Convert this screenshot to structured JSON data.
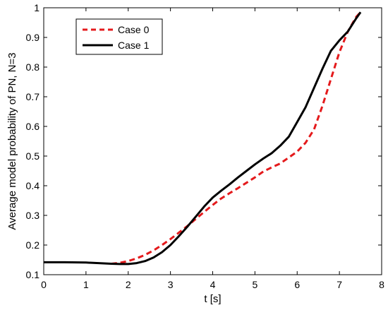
{
  "chart_data": {
    "type": "line",
    "xlabel": "t [s]",
    "ylabel": "Average model probability of PN, N=3",
    "xlim": [
      0,
      8
    ],
    "ylim": [
      0.1,
      1
    ],
    "xticks": [
      "0",
      "1",
      "2",
      "3",
      "4",
      "5",
      "6",
      "7",
      "8"
    ],
    "yticks": [
      "0.1",
      "0.2",
      "0.3",
      "0.4",
      "0.5",
      "0.6",
      "0.7",
      "0.8",
      "0.9",
      "1"
    ],
    "legend_position": "top-left",
    "grid": false,
    "series": [
      {
        "name": "Case 0",
        "color": "#e41a1c",
        "style": "dashed",
        "x": [
          1.6,
          1.8,
          2.0,
          2.2,
          2.4,
          2.6,
          2.8,
          3.0,
          3.2,
          3.4,
          3.6,
          3.8,
          4.0,
          4.2,
          4.4,
          4.6,
          4.8,
          5.0,
          5.2,
          5.4,
          5.6,
          5.8,
          6.0,
          6.2,
          6.4,
          6.6,
          6.8,
          7.0,
          7.2,
          7.4,
          7.5
        ],
        "y": [
          0.137,
          0.14,
          0.146,
          0.155,
          0.167,
          0.182,
          0.2,
          0.22,
          0.242,
          0.264,
          0.288,
          0.312,
          0.335,
          0.357,
          0.375,
          0.392,
          0.41,
          0.428,
          0.448,
          0.462,
          0.475,
          0.495,
          0.515,
          0.545,
          0.59,
          0.67,
          0.76,
          0.85,
          0.92,
          0.97,
          0.985
        ]
      },
      {
        "name": "Case 1",
        "color": "#000000",
        "style": "solid",
        "x": [
          0.0,
          0.5,
          1.0,
          1.3,
          1.6,
          1.8,
          2.0,
          2.2,
          2.4,
          2.6,
          2.8,
          3.0,
          3.2,
          3.4,
          3.6,
          3.8,
          4.0,
          4.2,
          4.4,
          4.6,
          4.8,
          5.0,
          5.2,
          5.4,
          5.6,
          5.8,
          6.0,
          6.2,
          6.4,
          6.6,
          6.8,
          7.0,
          7.2,
          7.4,
          7.5
        ],
        "y": [
          0.142,
          0.142,
          0.141,
          0.139,
          0.137,
          0.136,
          0.136,
          0.139,
          0.146,
          0.158,
          0.176,
          0.2,
          0.23,
          0.262,
          0.296,
          0.33,
          0.36,
          0.383,
          0.405,
          0.428,
          0.45,
          0.472,
          0.492,
          0.51,
          0.535,
          0.565,
          0.615,
          0.665,
          0.73,
          0.795,
          0.855,
          0.89,
          0.92,
          0.965,
          0.985
        ]
      }
    ]
  }
}
